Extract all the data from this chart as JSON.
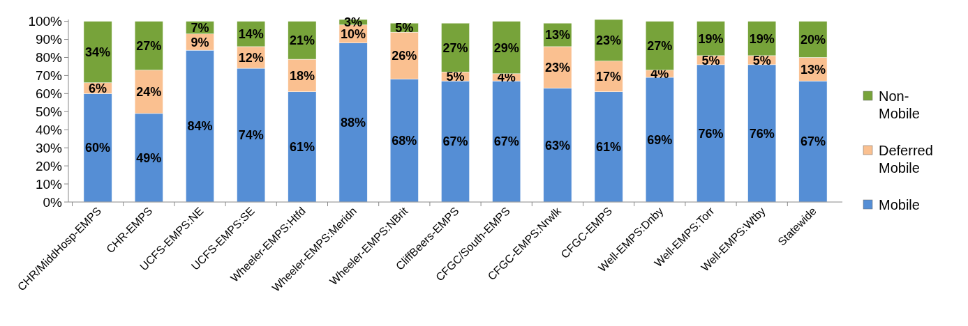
{
  "chart_data": {
    "type": "bar",
    "stacked": true,
    "categories": [
      "CHR/MiddHosp-EMPS",
      "CHR-EMPS",
      "UCFS-EMPS:NE",
      "UCFS-EMPS:SE",
      "Wheeler-EMPS:Htfd",
      "Wheeler-EMPS:Meridn",
      "Wheeler-EMPS:NBrit",
      "CliffBeers-EMPS",
      "CFGC/South-EMPS",
      "CFGC-EMPS:Nrwlk",
      "CFGC-EMPS",
      "Well-EMPS:Dnby",
      "Well-EMPS:Torr",
      "Well-EMPS:Wtby",
      "Statewide"
    ],
    "series": [
      {
        "name": "Mobile",
        "color": "#558ed5",
        "values": [
          60,
          49,
          84,
          74,
          61,
          88,
          68,
          67,
          67,
          63,
          61,
          69,
          76,
          76,
          67
        ],
        "value_labels": [
          "60%",
          "49%",
          "84%",
          "74%",
          "61%",
          "88%",
          "68%",
          "67%",
          "67%",
          "63%",
          "61%",
          "69%",
          "76%",
          "76%",
          "67%"
        ]
      },
      {
        "name": "Deferred Mobile",
        "color": "#fac090",
        "values": [
          6,
          24,
          9,
          12,
          18,
          10,
          26,
          5,
          4,
          23,
          17,
          4,
          5,
          5,
          13
        ],
        "value_labels": [
          "6%",
          "24%",
          "9%",
          "12%",
          "18%",
          "10%",
          "26%",
          "5%",
          "4%",
          "23%",
          "17%",
          "4%",
          "5%",
          "5%",
          "13%"
        ]
      },
      {
        "name": "Non-Mobile",
        "color": "#77a33a",
        "values": [
          34,
          27,
          7,
          14,
          21,
          3,
          5,
          27,
          29,
          13,
          23,
          27,
          19,
          19,
          20
        ],
        "value_labels": [
          "34%",
          "27%",
          "7%",
          "14%",
          "21%",
          "3%",
          "5%",
          "27%",
          "29%",
          "13%",
          "23%",
          "27%",
          "19%",
          "19%",
          "20%"
        ]
      }
    ],
    "ylim": [
      0,
      101
    ],
    "yticks": [
      {
        "value": 0,
        "label": "0%"
      },
      {
        "value": 10,
        "label": "10%"
      },
      {
        "value": 20,
        "label": "20%"
      },
      {
        "value": 30,
        "label": "30%"
      },
      {
        "value": 40,
        "label": "40%"
      },
      {
        "value": 50,
        "label": "50%"
      },
      {
        "value": 60,
        "label": "60%"
      },
      {
        "value": 70,
        "label": "70%"
      },
      {
        "value": 80,
        "label": "80%"
      },
      {
        "value": 90,
        "label": "90%"
      },
      {
        "value": 100,
        "label": "100%"
      }
    ],
    "legend": "right",
    "grid": false
  }
}
